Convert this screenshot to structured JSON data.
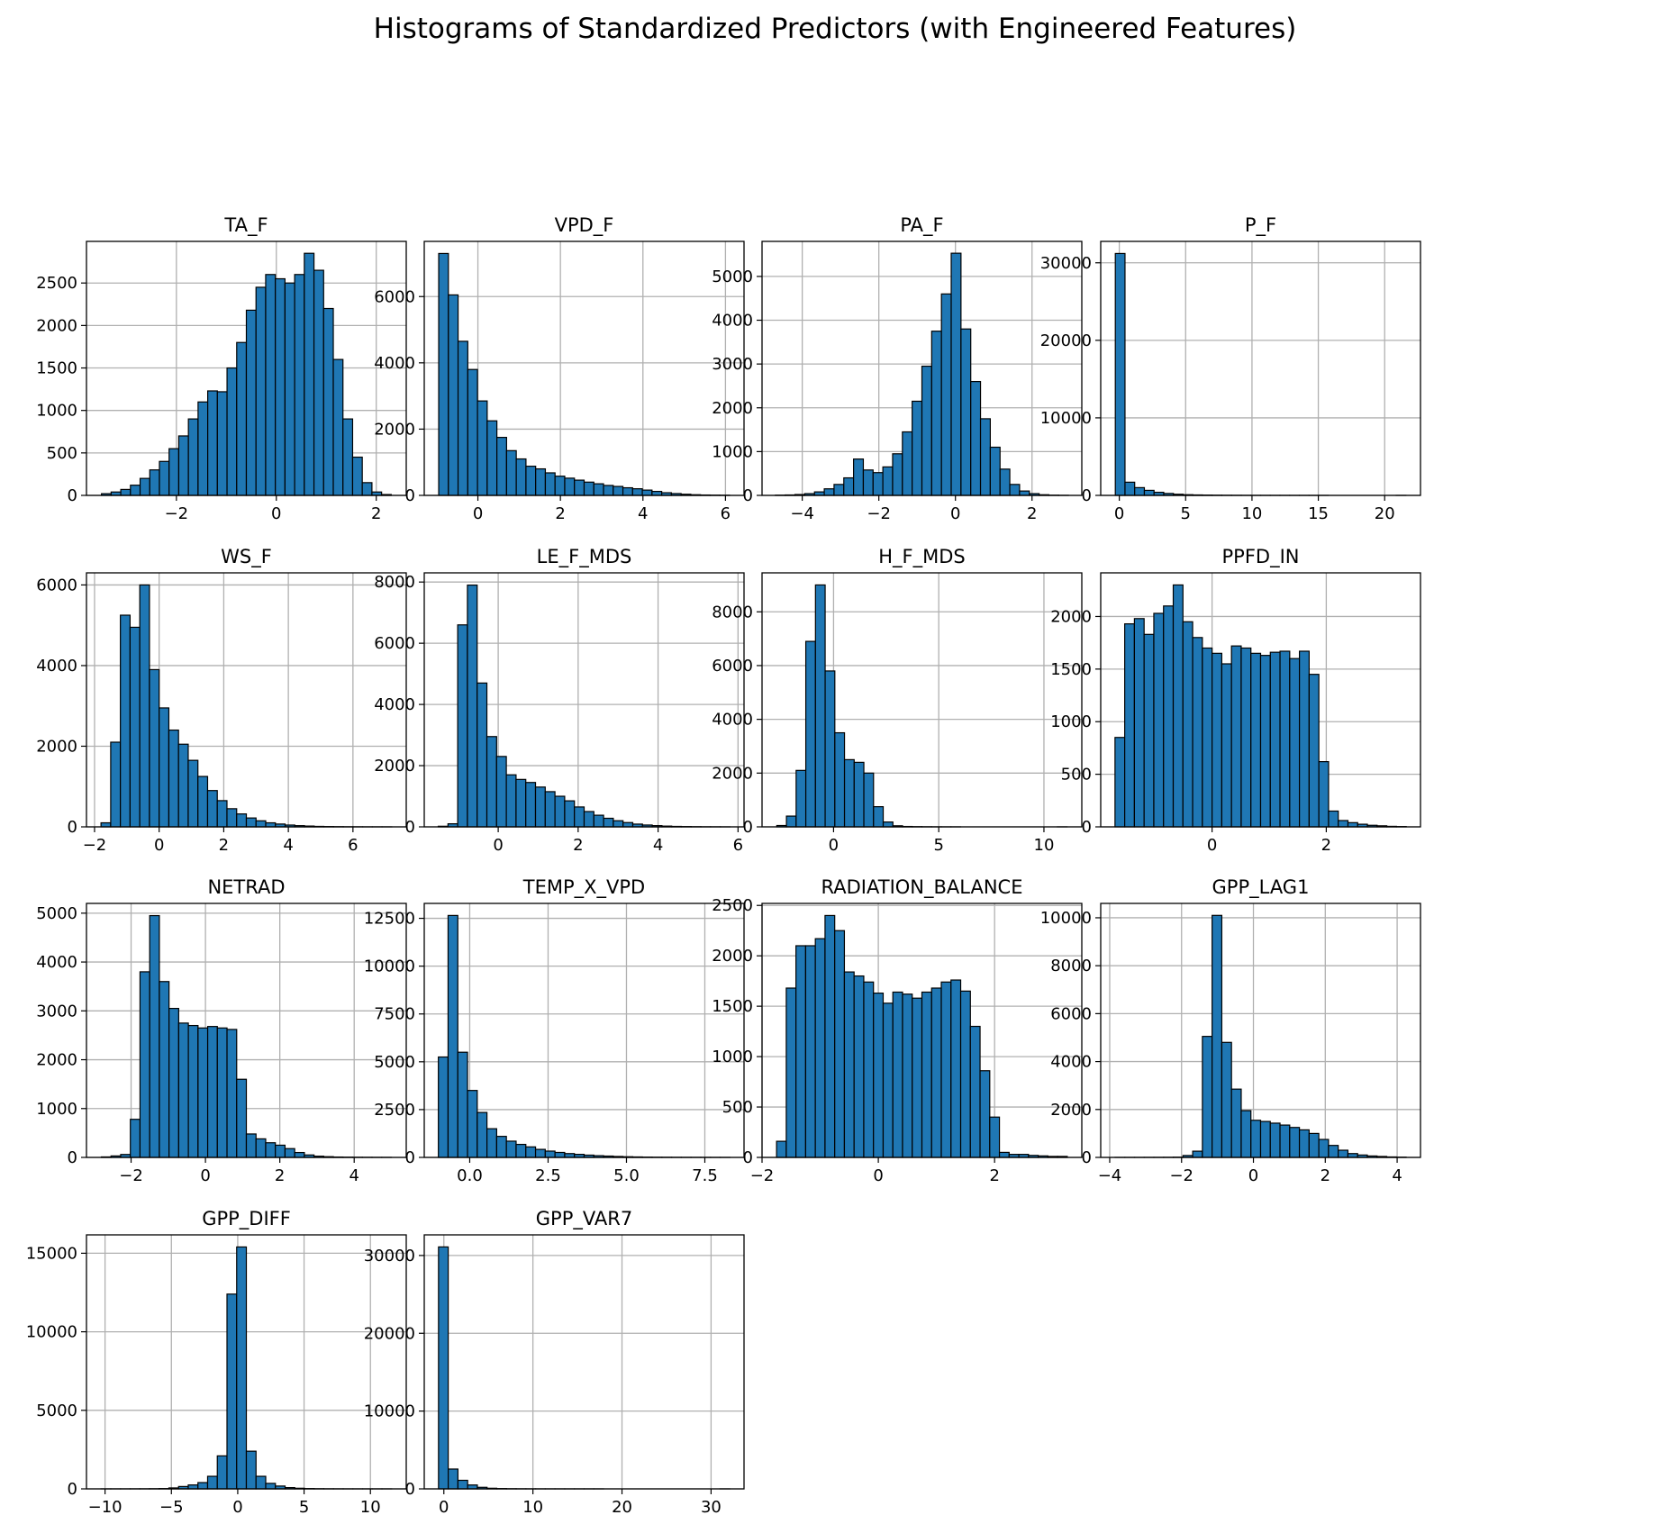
{
  "figure": {
    "title": "Histograms of Standardized Predictors (with Engineered Features)",
    "bar_color": "#1f77b4",
    "edge_color": "#000000",
    "grid_color": "#b0b0b0"
  },
  "chart_data": [
    {
      "type": "bar",
      "title": "TA_F",
      "grid": true,
      "bin_range": [
        -3.5,
        2.3
      ],
      "values": [
        20,
        40,
        70,
        120,
        200,
        300,
        400,
        550,
        700,
        900,
        1100,
        1230,
        1220,
        1500,
        1800,
        2180,
        2450,
        2600,
        2550,
        2500,
        2600,
        2850,
        2650,
        2200,
        1600,
        900,
        450,
        150,
        40,
        10
      ],
      "xlim": [
        -3.8,
        2.6
      ],
      "ylim": [
        0,
        2990
      ],
      "xticks": [
        -2,
        0,
        2
      ],
      "xtick_labels": [
        "−2",
        "0",
        "2"
      ],
      "yticks": [
        0,
        500,
        1000,
        1500,
        2000,
        2500
      ],
      "ytick_labels": [
        "0",
        "500",
        "1000",
        "1500",
        "2000",
        "2500"
      ]
    },
    {
      "type": "bar",
      "title": "VPD_F",
      "grid": true,
      "bin_range": [
        -0.95,
        6.1
      ],
      "values": [
        7300,
        6050,
        4650,
        3800,
        2850,
        2250,
        1750,
        1350,
        1100,
        880,
        800,
        680,
        580,
        520,
        460,
        400,
        350,
        300,
        270,
        230,
        200,
        160,
        120,
        80,
        55,
        35,
        20,
        12,
        8,
        5
      ],
      "xlim": [
        -1.3,
        6.45
      ],
      "ylim": [
        0,
        7665
      ],
      "xticks": [
        0,
        2,
        4,
        6
      ],
      "xtick_labels": [
        "0",
        "2",
        "4",
        "6"
      ],
      "yticks": [
        0,
        2000,
        4000,
        6000
      ],
      "ytick_labels": [
        "0",
        "2000",
        "4000",
        "6000"
      ]
    },
    {
      "type": "bar",
      "title": "PA_F",
      "grid": true,
      "bin_range": [
        -4.7,
        2.95
      ],
      "values": [
        5,
        10,
        20,
        40,
        80,
        150,
        250,
        400,
        830,
        580,
        520,
        650,
        950,
        1450,
        2150,
        2950,
        3750,
        4600,
        5530,
        3800,
        2600,
        1750,
        1100,
        600,
        250,
        100,
        40,
        15,
        5,
        2
      ],
      "xlim": [
        -5.05,
        3.3
      ],
      "ylim": [
        0,
        5800
      ],
      "xticks": [
        -4,
        -2,
        0,
        2
      ],
      "xtick_labels": [
        "−4",
        "−2",
        "0",
        "2"
      ],
      "yticks": [
        0,
        1000,
        2000,
        3000,
        4000,
        5000
      ],
      "ytick_labels": [
        "0",
        "1000",
        "2000",
        "3000",
        "4000",
        "5000"
      ]
    },
    {
      "type": "bar",
      "title": "P_F",
      "grid": true,
      "bin_range": [
        -0.3,
        21.6
      ],
      "values": [
        31200,
        1700,
        1000,
        650,
        400,
        250,
        150,
        90,
        60,
        40,
        25,
        15,
        10,
        6,
        4,
        3,
        2,
        2,
        1,
        1,
        1,
        1,
        0,
        0,
        0,
        0,
        0,
        0,
        0,
        1
      ],
      "xlim": [
        -1.4,
        22.7
      ],
      "ylim": [
        0,
        32760
      ],
      "xticks": [
        0,
        5,
        10,
        15,
        20
      ],
      "xtick_labels": [
        "0",
        "5",
        "10",
        "15",
        "20"
      ],
      "yticks": [
        0,
        10000,
        20000,
        30000
      ],
      "ytick_labels": [
        "0",
        "10000",
        "20000",
        "30000"
      ]
    },
    {
      "type": "bar",
      "title": "WS_F",
      "grid": true,
      "bin_range": [
        -1.8,
        7.2
      ],
      "values": [
        100,
        2100,
        5250,
        4950,
        6000,
        3900,
        2950,
        2400,
        2050,
        1650,
        1250,
        900,
        650,
        450,
        320,
        220,
        150,
        100,
        70,
        45,
        30,
        20,
        12,
        8,
        5,
        3,
        2,
        1,
        1,
        1
      ],
      "xlim": [
        -2.25,
        7.65
      ],
      "ylim": [
        0,
        6300
      ],
      "xticks": [
        -2,
        0,
        2,
        4,
        6
      ],
      "xtick_labels": [
        "−2",
        "0",
        "2",
        "4",
        "6"
      ],
      "yticks": [
        0,
        2000,
        4000,
        6000
      ],
      "ytick_labels": [
        "0",
        "2000",
        "4000",
        "6000"
      ]
    },
    {
      "type": "bar",
      "title": "LE_F_MDS",
      "grid": true,
      "bin_range": [
        -1.5,
        5.8
      ],
      "values": [
        20,
        100,
        6600,
        7900,
        4700,
        2950,
        2300,
        1700,
        1550,
        1450,
        1300,
        1150,
        1000,
        850,
        650,
        500,
        380,
        280,
        200,
        140,
        90,
        60,
        40,
        25,
        15,
        10,
        6,
        3,
        2,
        1
      ],
      "xlim": [
        -1.85,
        6.15
      ],
      "ylim": [
        0,
        8300
      ],
      "xticks": [
        0,
        2,
        4,
        6
      ],
      "xtick_labels": [
        "0",
        "2",
        "4",
        "6"
      ],
      "yticks": [
        0,
        2000,
        4000,
        6000,
        8000
      ],
      "ytick_labels": [
        "0",
        "2000",
        "4000",
        "6000",
        "8000"
      ]
    },
    {
      "type": "bar",
      "title": "H_F_MDS",
      "grid": true,
      "bin_range": [
        -2.7,
        11.1
      ],
      "values": [
        50,
        400,
        2100,
        6900,
        9000,
        5800,
        3500,
        2500,
        2400,
        2000,
        750,
        180,
        40,
        15,
        8,
        4,
        2,
        1,
        1,
        0,
        0,
        0,
        0,
        0,
        0,
        0,
        0,
        0,
        0,
        1
      ],
      "xlim": [
        -3.4,
        11.8
      ],
      "ylim": [
        0,
        9450
      ],
      "xticks": [
        0,
        5,
        10
      ],
      "xtick_labels": [
        "0",
        "5",
        "10"
      ],
      "yticks": [
        0,
        2000,
        4000,
        6000,
        8000
      ],
      "ytick_labels": [
        "0",
        "2000",
        "4000",
        "6000",
        "8000"
      ]
    },
    {
      "type": "bar",
      "title": "PPFD_IN",
      "grid": true,
      "bin_range": [
        -1.7,
        3.4
      ],
      "values": [
        850,
        1930,
        1980,
        1830,
        2030,
        2100,
        2300,
        1950,
        1800,
        1700,
        1650,
        1550,
        1720,
        1700,
        1650,
        1630,
        1660,
        1670,
        1600,
        1670,
        1450,
        620,
        150,
        60,
        40,
        25,
        15,
        10,
        5,
        3
      ],
      "xlim": [
        -1.95,
        3.65
      ],
      "ylim": [
        0,
        2415
      ],
      "xticks": [
        0,
        2
      ],
      "xtick_labels": [
        "0",
        "2"
      ],
      "yticks": [
        0,
        500,
        1000,
        1500,
        2000
      ],
      "ytick_labels": [
        "0",
        "500",
        "1000",
        "1500",
        "2000"
      ]
    },
    {
      "type": "bar",
      "title": "NETRAD",
      "grid": true,
      "bin_range": [
        -2.8,
        5.0
      ],
      "values": [
        10,
        30,
        60,
        780,
        3800,
        4950,
        3600,
        3050,
        2750,
        2700,
        2650,
        2680,
        2650,
        2620,
        1600,
        480,
        380,
        300,
        250,
        180,
        100,
        50,
        25,
        15,
        8,
        5,
        3,
        2,
        1,
        1
      ],
      "xlim": [
        -3.2,
        5.4
      ],
      "ylim": [
        0,
        5200
      ],
      "xticks": [
        -2,
        0,
        2,
        4
      ],
      "xtick_labels": [
        "−2",
        "0",
        "2",
        "4"
      ],
      "yticks": [
        0,
        1000,
        2000,
        3000,
        4000,
        5000
      ],
      "ytick_labels": [
        "0",
        "1000",
        "2000",
        "3000",
        "4000",
        "5000"
      ]
    },
    {
      "type": "bar",
      "title": "TEMP_X_VPD",
      "grid": true,
      "bin_range": [
        -1.0,
        8.3
      ],
      "values": [
        5250,
        12650,
        5500,
        3500,
        2350,
        1500,
        1100,
        850,
        680,
        550,
        420,
        330,
        260,
        200,
        160,
        120,
        90,
        70,
        50,
        35,
        25,
        15,
        10,
        8,
        5,
        4,
        3,
        2,
        1,
        1
      ],
      "xlim": [
        -1.45,
        8.75
      ],
      "ylim": [
        0,
        13280
      ],
      "xticks": [
        0,
        2.5,
        5,
        7.5
      ],
      "xtick_labels": [
        "0.0",
        "2.5",
        "5.0",
        "7.5"
      ],
      "yticks": [
        0,
        2500,
        5000,
        7500,
        10000,
        12500
      ],
      "ytick_labels": [
        "0",
        "2500",
        "5000",
        "7500",
        "10000",
        "12500"
      ]
    },
    {
      "type": "bar",
      "title": "RADIATION_BALANCE",
      "grid": true,
      "bin_range": [
        -1.75,
        3.25
      ],
      "values": [
        160,
        1680,
        2100,
        2100,
        2170,
        2400,
        2250,
        1840,
        1800,
        1740,
        1630,
        1530,
        1640,
        1620,
        1580,
        1640,
        1680,
        1740,
        1760,
        1650,
        1300,
        860,
        400,
        50,
        30,
        30,
        20,
        15,
        10,
        10
      ],
      "xlim": [
        -2.0,
        3.5
      ],
      "ylim": [
        0,
        2520
      ],
      "xticks": [
        -2,
        0,
        2
      ],
      "xtick_labels": [
        "−2",
        "0",
        "2"
      ],
      "yticks": [
        0,
        500,
        1000,
        1500,
        2000,
        2500
      ],
      "ytick_labels": [
        "0",
        "500",
        "1000",
        "1500",
        "2000",
        "2500"
      ]
    },
    {
      "type": "bar",
      "title": "GPP_LAG1",
      "grid": true,
      "bin_range": [
        -3.85,
        4.25
      ],
      "values": [
        1,
        1,
        1,
        2,
        3,
        5,
        10,
        80,
        260,
        5050,
        10100,
        4800,
        2850,
        1950,
        1550,
        1500,
        1430,
        1350,
        1250,
        1150,
        1000,
        750,
        500,
        300,
        160,
        100,
        60,
        40,
        20,
        10
      ],
      "xlim": [
        -4.25,
        4.65
      ],
      "ylim": [
        0,
        10600
      ],
      "xticks": [
        -4,
        -2,
        0,
        2,
        4
      ],
      "xtick_labels": [
        "−4",
        "−2",
        "0",
        "2",
        "4"
      ],
      "yticks": [
        0,
        2000,
        4000,
        6000,
        8000,
        10000
      ],
      "ytick_labels": [
        "0",
        "2000",
        "4000",
        "6000",
        "8000",
        "10000"
      ]
    },
    {
      "type": "bar",
      "title": "GPP_DIFF",
      "grid": true,
      "bin_range": [
        -10.3,
        11.6
      ],
      "values": [
        1,
        1,
        2,
        3,
        5,
        10,
        20,
        60,
        150,
        250,
        400,
        800,
        2100,
        12400,
        15400,
        2400,
        800,
        350,
        180,
        80,
        40,
        20,
        10,
        5,
        3,
        2,
        1,
        1,
        1,
        1
      ],
      "xlim": [
        -11.4,
        12.7
      ],
      "ylim": [
        0,
        16170
      ],
      "xticks": [
        -10,
        -5,
        0,
        5,
        10
      ],
      "xtick_labels": [
        "−10",
        "−5",
        "0",
        "5",
        "10"
      ],
      "yticks": [
        0,
        5000,
        10000,
        15000
      ],
      "ytick_labels": [
        "0",
        "5000",
        "10000",
        "15000"
      ]
    },
    {
      "type": "bar",
      "title": "GPP_VAR7",
      "grid": true,
      "bin_range": [
        -0.6,
        32.1
      ],
      "values": [
        31100,
        2550,
        1100,
        500,
        200,
        80,
        40,
        20,
        10,
        6,
        4,
        3,
        2,
        1,
        1,
        1,
        1,
        0,
        0,
        0,
        0,
        0,
        0,
        0,
        0,
        0,
        0,
        0,
        0,
        1
      ],
      "xlim": [
        -2.2,
        33.7
      ],
      "ylim": [
        0,
        32650
      ],
      "xticks": [
        0,
        10,
        20,
        30
      ],
      "xtick_labels": [
        "0",
        "10",
        "20",
        "30"
      ],
      "yticks": [
        0,
        10000,
        20000,
        30000
      ],
      "ytick_labels": [
        "0",
        "10000",
        "20000",
        "30000"
      ]
    }
  ]
}
